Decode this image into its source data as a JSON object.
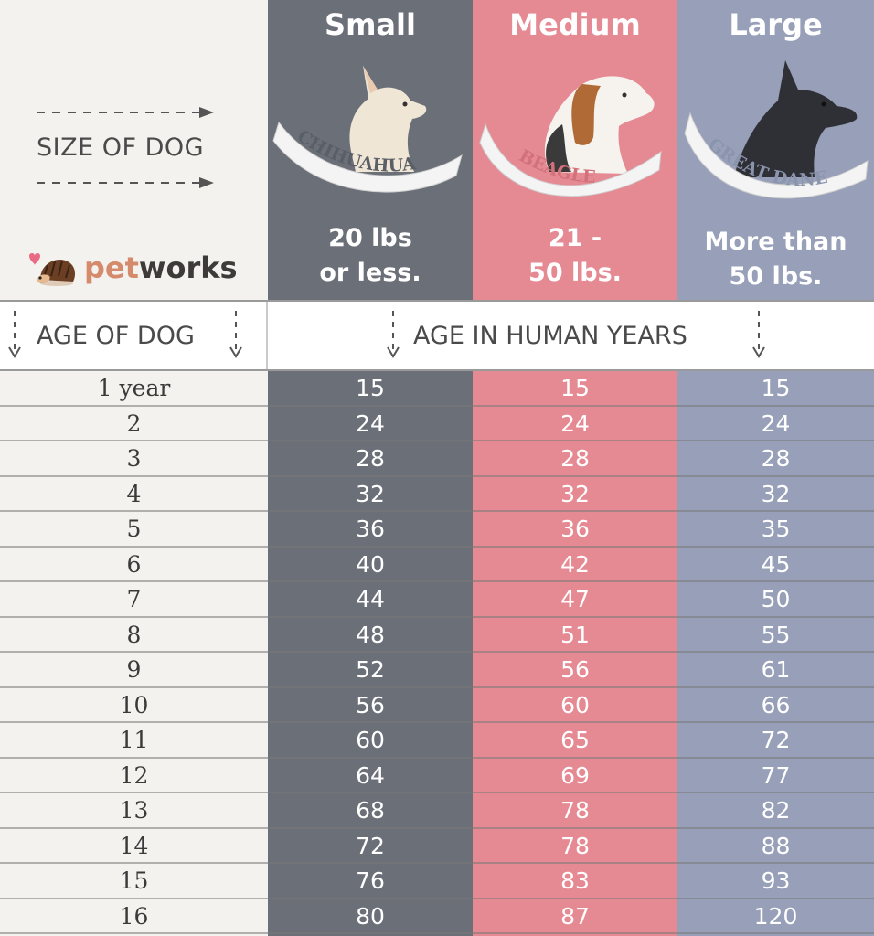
{
  "header": {
    "size_of_dog": "SIZE OF DOG",
    "brand": {
      "pet": "pet",
      "works": "works"
    }
  },
  "band": {
    "age_of_dog": "AGE OF DOG",
    "age_human": "AGE IN HUMAN YEARS"
  },
  "colors": {
    "small": "#6b6f78",
    "medium": "#e58a93",
    "large": "#97a0b8"
  },
  "chart_data": {
    "type": "table",
    "columns": [
      {
        "size": "Small",
        "breed": "CHIHUAHUA",
        "weight_line1": "20 lbs",
        "weight_line2": "or less."
      },
      {
        "size": "Medium",
        "breed": "BEAGLE",
        "weight_line1": "21 -",
        "weight_line2": "50 lbs."
      },
      {
        "size": "Large",
        "breed": "GREAT DANE",
        "weight_line1": "More than",
        "weight_line2": "50 lbs."
      }
    ],
    "rows": [
      {
        "age": "1 year",
        "small": "15",
        "medium": "15",
        "large": "15"
      },
      {
        "age": "2",
        "small": "24",
        "medium": "24",
        "large": "24"
      },
      {
        "age": "3",
        "small": "28",
        "medium": "28",
        "large": "28"
      },
      {
        "age": "4",
        "small": "32",
        "medium": "32",
        "large": "32"
      },
      {
        "age": "5",
        "small": "36",
        "medium": "36",
        "large": "35"
      },
      {
        "age": "6",
        "small": "40",
        "medium": "42",
        "large": "45"
      },
      {
        "age": "7",
        "small": "44",
        "medium": "47",
        "large": "50"
      },
      {
        "age": "8",
        "small": "48",
        "medium": "51",
        "large": "55"
      },
      {
        "age": "9",
        "small": "52",
        "medium": "56",
        "large": "61"
      },
      {
        "age": "10",
        "small": "56",
        "medium": "60",
        "large": "66"
      },
      {
        "age": "11",
        "small": "60",
        "medium": "65",
        "large": "72"
      },
      {
        "age": "12",
        "small": "64",
        "medium": "69",
        "large": "77"
      },
      {
        "age": "13",
        "small": "68",
        "medium": "78",
        "large": "82"
      },
      {
        "age": "14",
        "small": "72",
        "medium": "78",
        "large": "88"
      },
      {
        "age": "15",
        "small": "76",
        "medium": "83",
        "large": "93"
      },
      {
        "age": "16",
        "small": "80",
        "medium": "87",
        "large": "120"
      }
    ]
  }
}
